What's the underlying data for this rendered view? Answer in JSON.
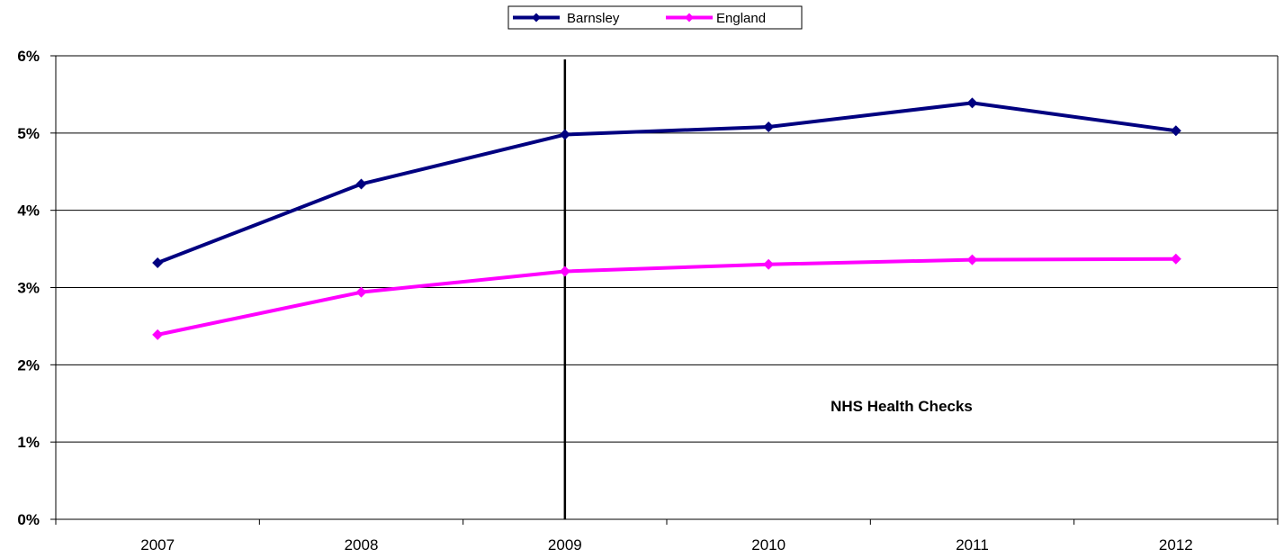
{
  "chart_data": {
    "type": "line",
    "categories": [
      "2007",
      "2008",
      "2009",
      "2010",
      "2011",
      "2012"
    ],
    "series": [
      {
        "name": "Barnsley",
        "color": "#000080",
        "values": [
          3.32,
          4.34,
          4.98,
          5.08,
          5.39,
          5.03
        ]
      },
      {
        "name": "England",
        "color": "#FF00FF",
        "values": [
          2.39,
          2.94,
          3.21,
          3.3,
          3.36,
          3.37
        ]
      }
    ],
    "ylim": [
      0,
      6
    ],
    "y_ticks": [
      "0%",
      "1%",
      "2%",
      "3%",
      "4%",
      "5%",
      "6%"
    ],
    "y_unit": "percent",
    "grid": "horizontal major gridlines",
    "legend_position": "top-center",
    "markers": "diamond",
    "annotations": [
      {
        "text": "NHS Health Checks",
        "type": "label"
      },
      {
        "type": "vertical-line",
        "category": "2009",
        "color": "#000000"
      }
    ],
    "title": "",
    "xlabel": "",
    "ylabel": ""
  }
}
